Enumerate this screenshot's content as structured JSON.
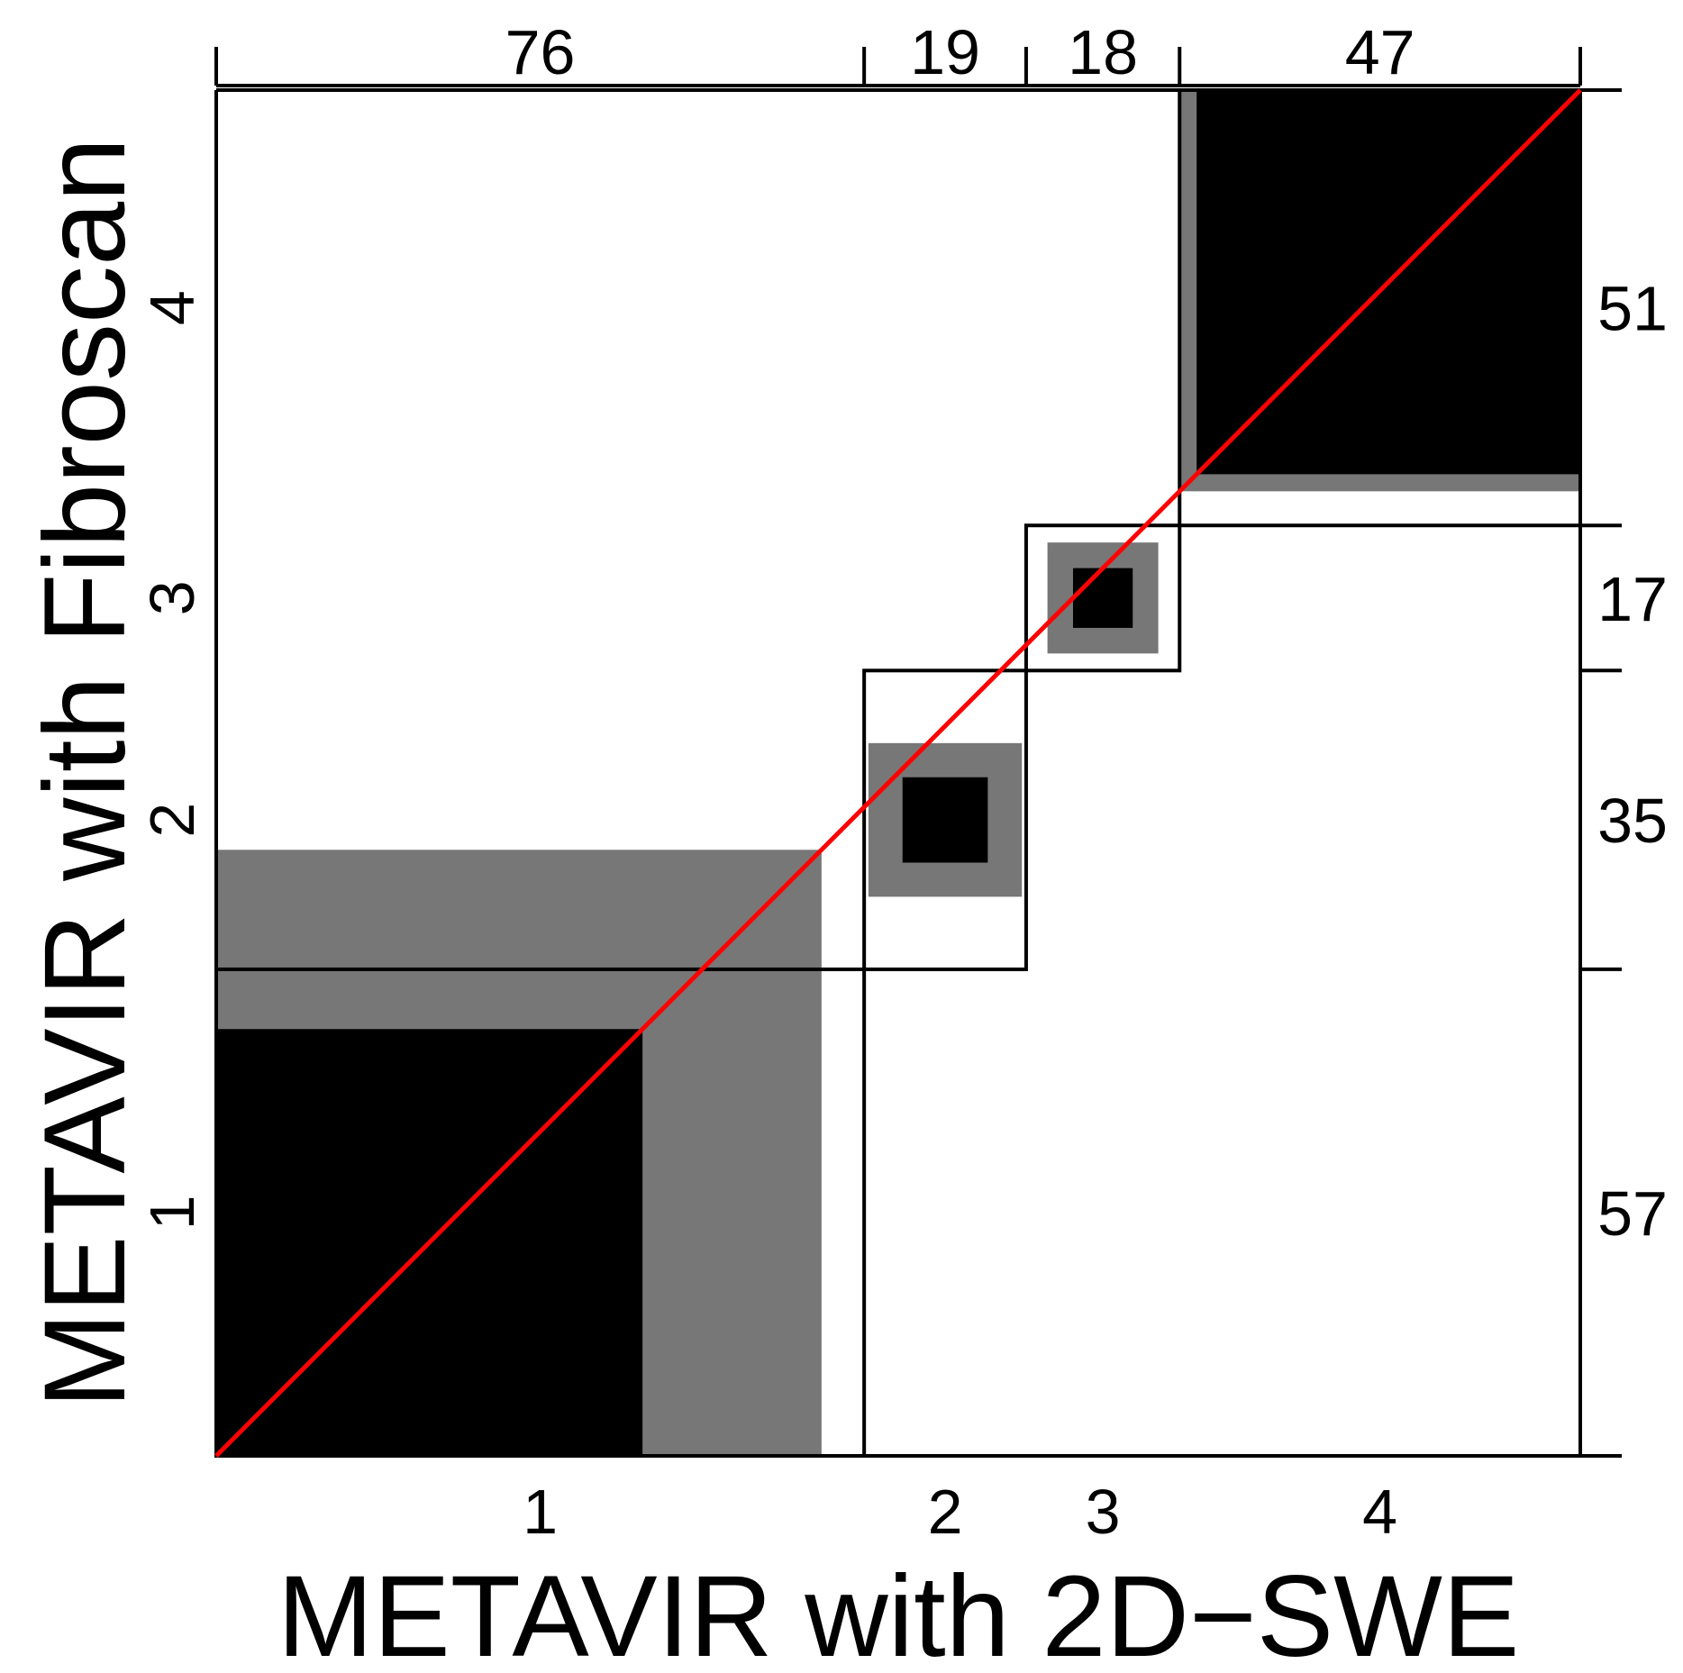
{
  "chart_data": {
    "type": "agreement-chart",
    "xlabel": "METAVIR with 2D−SWE",
    "ylabel": "METAVIR with Fibroscan",
    "categories": [
      "1",
      "2",
      "3",
      "4"
    ],
    "col_totals": [
      76,
      19,
      18,
      47
    ],
    "row_totals": [
      57,
      35,
      17,
      51
    ],
    "agreement_exact": [
      50,
      10,
      7,
      45
    ],
    "agreement_partial": [
      71,
      18,
      13,
      47
    ],
    "diagonal_color": "#ff0000",
    "exact_color": "#000000",
    "partial_color": "#777777"
  }
}
